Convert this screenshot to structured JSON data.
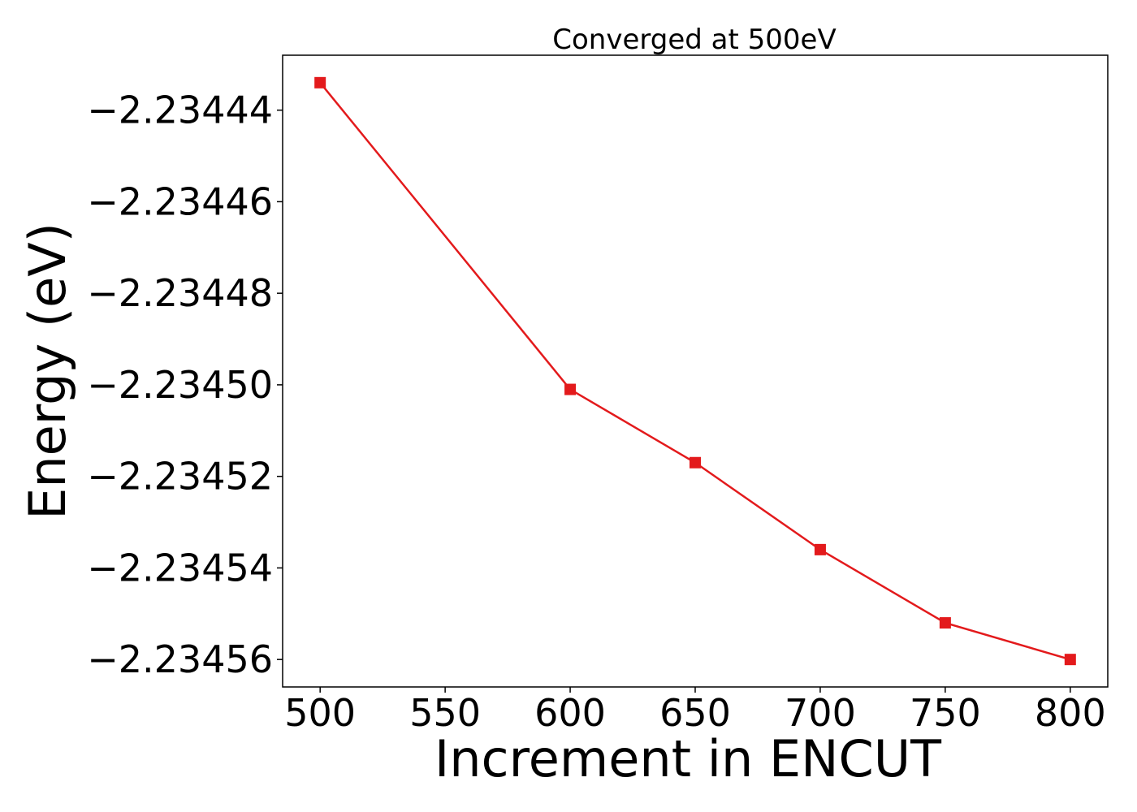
{
  "chart_data": {
    "type": "line",
    "title": "Converged at 500eV",
    "xlabel": "Increment in ENCUT",
    "ylabel": "Energy (eV)",
    "x": [
      500,
      600,
      650,
      700,
      750,
      800
    ],
    "series": [
      {
        "values": [
          -2.234434,
          -2.234501,
          -2.234517,
          -2.234536,
          -2.234552,
          -2.23456
        ],
        "color": "#e31a1c",
        "marker": "square"
      }
    ],
    "xticks": [
      500,
      550,
      600,
      650,
      700,
      750,
      800
    ],
    "xtick_labels": [
      "500",
      "550",
      "600",
      "650",
      "700",
      "750",
      "800"
    ],
    "yticks": [
      -2.23444,
      -2.23446,
      -2.23448,
      -2.2345,
      -2.23452,
      -2.23454,
      -2.23456
    ],
    "ytick_labels": [
      "−2.23444",
      "−2.23446",
      "−2.23448",
      "−2.23450",
      "−2.23452",
      "−2.23454",
      "−2.23456"
    ],
    "xlim": [
      485,
      815
    ],
    "ylim": [
      -2.234566,
      -2.234428
    ],
    "grid": false,
    "legend": "none"
  }
}
